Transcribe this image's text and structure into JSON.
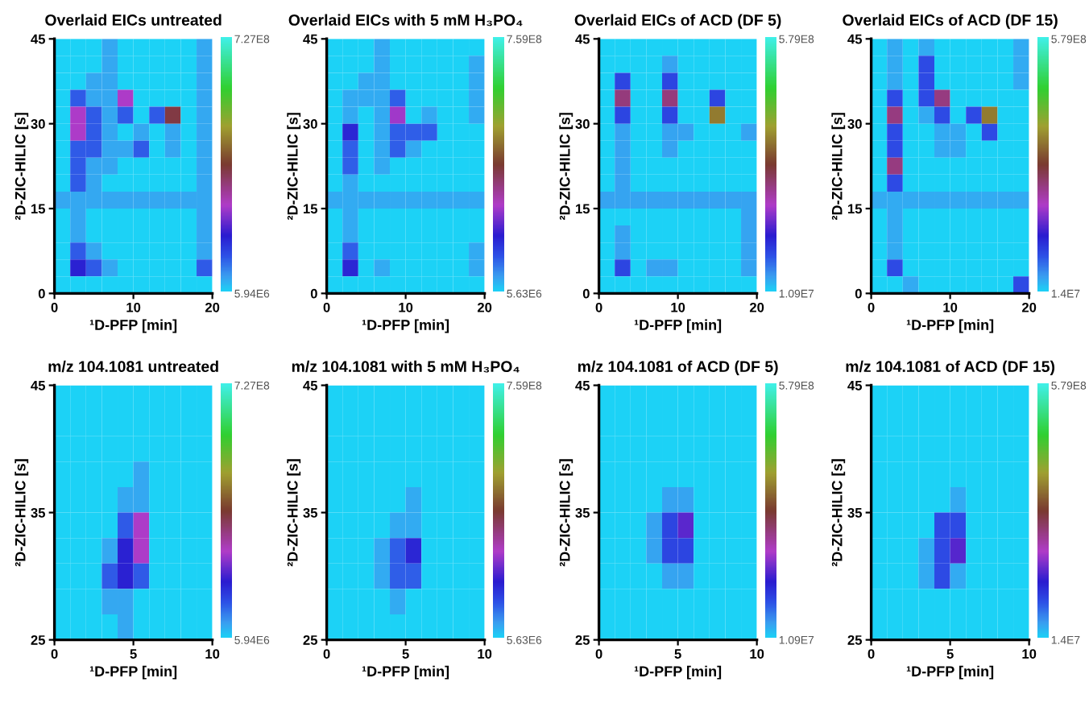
{
  "chart_data": [
    {
      "type": "heatmap",
      "title": "Overlaid EICs untreated",
      "xlabel": "¹D-PFP [min]",
      "ylabel": "²D-ZIC-HILIC [s]",
      "xlim": [
        0,
        20
      ],
      "xticks": [
        0,
        10,
        20
      ],
      "ylim": [
        0,
        45
      ],
      "yticks": [
        0,
        15,
        30,
        45
      ],
      "clim": [
        5940000.0,
        727000000.0
      ],
      "cticks": [
        {
          "value": 5940000.0,
          "label": "5.94E6"
        },
        {
          "value": 727000000.0,
          "label": "7.27E8"
        }
      ],
      "cells": [
        [
          6000000.0,
          6000000.0,
          6000000.0,
          40000000.0,
          6000000.0,
          6000000.0,
          6000000.0,
          6000000.0,
          6000000.0,
          40000000.0
        ],
        [
          6000000.0,
          6000000.0,
          6000000.0,
          40000000.0,
          6000000.0,
          6000000.0,
          6000000.0,
          6000000.0,
          6000000.0,
          40000000.0
        ],
        [
          6000000.0,
          6000000.0,
          40000000.0,
          40000000.0,
          6000000.0,
          6000000.0,
          6000000.0,
          6000000.0,
          6000000.0,
          40000000.0
        ],
        [
          6000000.0,
          100000000.0,
          40000000.0,
          40000000.0,
          250000000.0,
          6000000.0,
          6000000.0,
          6000000.0,
          6000000.0,
          40000000.0
        ],
        [
          6000000.0,
          250000000.0,
          100000000.0,
          40000000.0,
          100000000.0,
          6000000.0,
          100000000.0,
          350000000.0,
          6000000.0,
          40000000.0
        ],
        [
          6000000.0,
          250000000.0,
          100000000.0,
          40000000.0,
          6000000.0,
          40000000.0,
          6000000.0,
          40000000.0,
          6000000.0,
          40000000.0
        ],
        [
          6000000.0,
          100000000.0,
          100000000.0,
          40000000.0,
          40000000.0,
          100000000.0,
          6000000.0,
          40000000.0,
          6000000.0,
          40000000.0
        ],
        [
          6000000.0,
          100000000.0,
          40000000.0,
          40000000.0,
          6000000.0,
          6000000.0,
          6000000.0,
          6000000.0,
          6000000.0,
          40000000.0
        ],
        [
          6000000.0,
          100000000.0,
          40000000.0,
          6000000.0,
          6000000.0,
          6000000.0,
          6000000.0,
          6000000.0,
          6000000.0,
          40000000.0
        ],
        [
          40000000.0,
          40000000.0,
          40000000.0,
          40000000.0,
          40000000.0,
          40000000.0,
          40000000.0,
          40000000.0,
          40000000.0,
          40000000.0
        ],
        [
          6000000.0,
          40000000.0,
          6000000.0,
          6000000.0,
          6000000.0,
          6000000.0,
          6000000.0,
          6000000.0,
          6000000.0,
          40000000.0
        ],
        [
          6000000.0,
          40000000.0,
          6000000.0,
          6000000.0,
          6000000.0,
          6000000.0,
          6000000.0,
          6000000.0,
          6000000.0,
          40000000.0
        ],
        [
          6000000.0,
          100000000.0,
          40000000.0,
          6000000.0,
          6000000.0,
          6000000.0,
          6000000.0,
          6000000.0,
          6000000.0,
          40000000.0
        ],
        [
          6000000.0,
          160000000.0,
          100000000.0,
          40000000.0,
          6000000.0,
          6000000.0,
          6000000.0,
          6000000.0,
          6000000.0,
          100000000.0
        ],
        [
          6000000.0,
          6000000.0,
          6000000.0,
          6000000.0,
          6000000.0,
          6000000.0,
          6000000.0,
          6000000.0,
          6000000.0,
          6000000.0
        ]
      ]
    },
    {
      "type": "heatmap",
      "title": "Overlaid EICs with 5 mM H₃PO₄",
      "xlabel": "¹D-PFP [min]",
      "ylabel": "²D-ZIC-HILIC [s]",
      "xlim": [
        0,
        20
      ],
      "xticks": [
        0,
        10,
        20
      ],
      "ylim": [
        0,
        45
      ],
      "yticks": [
        0,
        15,
        30,
        45
      ],
      "clim": [
        5630000.0,
        759000000.0
      ],
      "cticks": [
        {
          "value": 5630000.0,
          "label": "5.63E6"
        },
        {
          "value": 759000000.0,
          "label": "7.59E8"
        }
      ],
      "cells": [
        [
          6000000.0,
          6000000.0,
          6000000.0,
          40000000.0,
          6000000.0,
          6000000.0,
          6000000.0,
          6000000.0,
          6000000.0,
          6000000.0
        ],
        [
          6000000.0,
          6000000.0,
          6000000.0,
          40000000.0,
          6000000.0,
          6000000.0,
          6000000.0,
          6000000.0,
          6000000.0,
          40000000.0
        ],
        [
          6000000.0,
          6000000.0,
          40000000.0,
          40000000.0,
          6000000.0,
          6000000.0,
          6000000.0,
          6000000.0,
          6000000.0,
          40000000.0
        ],
        [
          6000000.0,
          40000000.0,
          40000000.0,
          40000000.0,
          100000000.0,
          6000000.0,
          6000000.0,
          6000000.0,
          6000000.0,
          40000000.0
        ],
        [
          6000000.0,
          40000000.0,
          6000000.0,
          40000000.0,
          250000000.0,
          6000000.0,
          40000000.0,
          6000000.0,
          6000000.0,
          40000000.0
        ],
        [
          6000000.0,
          160000000.0,
          6000000.0,
          40000000.0,
          100000000.0,
          100000000.0,
          100000000.0,
          6000000.0,
          6000000.0,
          6000000.0
        ],
        [
          6000000.0,
          100000000.0,
          6000000.0,
          40000000.0,
          100000000.0,
          40000000.0,
          6000000.0,
          6000000.0,
          6000000.0,
          6000000.0
        ],
        [
          6000000.0,
          100000000.0,
          6000000.0,
          40000000.0,
          6000000.0,
          6000000.0,
          6000000.0,
          6000000.0,
          6000000.0,
          6000000.0
        ],
        [
          6000000.0,
          40000000.0,
          6000000.0,
          6000000.0,
          6000000.0,
          6000000.0,
          6000000.0,
          6000000.0,
          6000000.0,
          6000000.0
        ],
        [
          40000000.0,
          40000000.0,
          40000000.0,
          40000000.0,
          40000000.0,
          40000000.0,
          40000000.0,
          40000000.0,
          40000000.0,
          40000000.0
        ],
        [
          6000000.0,
          40000000.0,
          6000000.0,
          6000000.0,
          6000000.0,
          6000000.0,
          6000000.0,
          6000000.0,
          6000000.0,
          6000000.0
        ],
        [
          6000000.0,
          40000000.0,
          6000000.0,
          6000000.0,
          6000000.0,
          6000000.0,
          6000000.0,
          6000000.0,
          6000000.0,
          6000000.0
        ],
        [
          6000000.0,
          100000000.0,
          6000000.0,
          6000000.0,
          6000000.0,
          6000000.0,
          6000000.0,
          6000000.0,
          6000000.0,
          40000000.0
        ],
        [
          6000000.0,
          160000000.0,
          6000000.0,
          40000000.0,
          6000000.0,
          6000000.0,
          6000000.0,
          6000000.0,
          6000000.0,
          40000000.0
        ],
        [
          6000000.0,
          6000000.0,
          6000000.0,
          6000000.0,
          6000000.0,
          6000000.0,
          6000000.0,
          6000000.0,
          6000000.0,
          6000000.0
        ]
      ]
    },
    {
      "type": "heatmap",
      "title": "Overlaid EICs of ACD (DF 5)",
      "xlabel": "¹D-PFP [min]",
      "ylabel": "²D-ZIC-HILIC [s]",
      "xlim": [
        0,
        20
      ],
      "xticks": [
        0,
        10,
        20
      ],
      "ylim": [
        0,
        45
      ],
      "yticks": [
        0,
        15,
        30,
        45
      ],
      "clim": [
        10900000.0,
        579000000.0
      ],
      "cticks": [
        {
          "value": 10900000.0,
          "label": "1.09E7"
        },
        {
          "value": 579000000.0,
          "label": "5.79E8"
        }
      ],
      "cells": [
        [
          11000000.0,
          11000000.0,
          11000000.0,
          11000000.0,
          11000000.0,
          11000000.0,
          11000000.0,
          11000000.0,
          11000000.0,
          11000000.0
        ],
        [
          11000000.0,
          11000000.0,
          11000000.0,
          11000000.0,
          40000000.0,
          11000000.0,
          11000000.0,
          11000000.0,
          11000000.0,
          11000000.0
        ],
        [
          11000000.0,
          100000000.0,
          11000000.0,
          11000000.0,
          100000000.0,
          11000000.0,
          11000000.0,
          11000000.0,
          11000000.0,
          11000000.0
        ],
        [
          11000000.0,
          250000000.0,
          11000000.0,
          11000000.0,
          250000000.0,
          11000000.0,
          11000000.0,
          100000000.0,
          11000000.0,
          11000000.0
        ],
        [
          11000000.0,
          100000000.0,
          11000000.0,
          11000000.0,
          100000000.0,
          11000000.0,
          11000000.0,
          350000000.0,
          11000000.0,
          11000000.0
        ],
        [
          11000000.0,
          40000000.0,
          11000000.0,
          11000000.0,
          40000000.0,
          40000000.0,
          11000000.0,
          11000000.0,
          11000000.0,
          40000000.0
        ],
        [
          11000000.0,
          40000000.0,
          11000000.0,
          11000000.0,
          40000000.0,
          11000000.0,
          11000000.0,
          11000000.0,
          11000000.0,
          11000000.0
        ],
        [
          11000000.0,
          40000000.0,
          11000000.0,
          11000000.0,
          11000000.0,
          11000000.0,
          11000000.0,
          11000000.0,
          11000000.0,
          11000000.0
        ],
        [
          11000000.0,
          40000000.0,
          11000000.0,
          11000000.0,
          11000000.0,
          11000000.0,
          11000000.0,
          11000000.0,
          11000000.0,
          11000000.0
        ],
        [
          40000000.0,
          40000000.0,
          40000000.0,
          40000000.0,
          40000000.0,
          40000000.0,
          40000000.0,
          40000000.0,
          40000000.0,
          40000000.0
        ],
        [
          11000000.0,
          11000000.0,
          11000000.0,
          11000000.0,
          11000000.0,
          11000000.0,
          11000000.0,
          11000000.0,
          11000000.0,
          40000000.0
        ],
        [
          11000000.0,
          40000000.0,
          11000000.0,
          11000000.0,
          11000000.0,
          11000000.0,
          11000000.0,
          11000000.0,
          11000000.0,
          40000000.0
        ],
        [
          11000000.0,
          40000000.0,
          11000000.0,
          11000000.0,
          11000000.0,
          11000000.0,
          11000000.0,
          11000000.0,
          11000000.0,
          40000000.0
        ],
        [
          11000000.0,
          100000000.0,
          11000000.0,
          40000000.0,
          40000000.0,
          11000000.0,
          11000000.0,
          11000000.0,
          11000000.0,
          40000000.0
        ],
        [
          11000000.0,
          11000000.0,
          11000000.0,
          11000000.0,
          11000000.0,
          11000000.0,
          11000000.0,
          11000000.0,
          11000000.0,
          11000000.0
        ]
      ]
    },
    {
      "type": "heatmap",
      "title": "Overlaid EICs of ACD (DF 15)",
      "xlabel": "¹D-PFP [min]",
      "ylabel": "²D-ZIC-HILIC [s]",
      "xlim": [
        0,
        20
      ],
      "xticks": [
        0,
        10,
        20
      ],
      "ylim": [
        0,
        45
      ],
      "yticks": [
        0,
        15,
        30,
        45
      ],
      "clim": [
        14000000.0,
        579000000.0
      ],
      "cticks": [
        {
          "value": 14000000.0,
          "label": "1.4E7"
        },
        {
          "value": 579000000.0,
          "label": "5.79E8"
        }
      ],
      "cells": [
        [
          14000000.0,
          40000000.0,
          14000000.0,
          40000000.0,
          14000000.0,
          14000000.0,
          14000000.0,
          14000000.0,
          14000000.0,
          40000000.0
        ],
        [
          14000000.0,
          40000000.0,
          14000000.0,
          100000000.0,
          14000000.0,
          14000000.0,
          14000000.0,
          14000000.0,
          14000000.0,
          40000000.0
        ],
        [
          14000000.0,
          40000000.0,
          14000000.0,
          100000000.0,
          14000000.0,
          14000000.0,
          14000000.0,
          14000000.0,
          14000000.0,
          40000000.0
        ],
        [
          14000000.0,
          100000000.0,
          14000000.0,
          100000000.0,
          250000000.0,
          14000000.0,
          14000000.0,
          14000000.0,
          14000000.0,
          14000000.0
        ],
        [
          14000000.0,
          250000000.0,
          14000000.0,
          40000000.0,
          100000000.0,
          14000000.0,
          100000000.0,
          350000000.0,
          14000000.0,
          14000000.0
        ],
        [
          14000000.0,
          100000000.0,
          14000000.0,
          14000000.0,
          40000000.0,
          40000000.0,
          14000000.0,
          100000000.0,
          14000000.0,
          14000000.0
        ],
        [
          14000000.0,
          100000000.0,
          14000000.0,
          14000000.0,
          40000000.0,
          40000000.0,
          14000000.0,
          14000000.0,
          14000000.0,
          14000000.0
        ],
        [
          14000000.0,
          250000000.0,
          14000000.0,
          14000000.0,
          14000000.0,
          14000000.0,
          14000000.0,
          14000000.0,
          14000000.0,
          14000000.0
        ],
        [
          14000000.0,
          100000000.0,
          14000000.0,
          14000000.0,
          14000000.0,
          14000000.0,
          14000000.0,
          14000000.0,
          14000000.0,
          14000000.0
        ],
        [
          40000000.0,
          40000000.0,
          40000000.0,
          40000000.0,
          40000000.0,
          40000000.0,
          40000000.0,
          40000000.0,
          40000000.0,
          40000000.0
        ],
        [
          14000000.0,
          40000000.0,
          14000000.0,
          14000000.0,
          14000000.0,
          14000000.0,
          14000000.0,
          14000000.0,
          14000000.0,
          14000000.0
        ],
        [
          14000000.0,
          40000000.0,
          14000000.0,
          14000000.0,
          14000000.0,
          14000000.0,
          14000000.0,
          14000000.0,
          14000000.0,
          14000000.0
        ],
        [
          14000000.0,
          40000000.0,
          14000000.0,
          14000000.0,
          14000000.0,
          14000000.0,
          14000000.0,
          14000000.0,
          14000000.0,
          14000000.0
        ],
        [
          14000000.0,
          100000000.0,
          14000000.0,
          14000000.0,
          14000000.0,
          14000000.0,
          14000000.0,
          14000000.0,
          14000000.0,
          14000000.0
        ],
        [
          14000000.0,
          14000000.0,
          40000000.0,
          14000000.0,
          14000000.0,
          14000000.0,
          14000000.0,
          14000000.0,
          14000000.0,
          100000000.0
        ]
      ]
    },
    {
      "type": "heatmap",
      "title": "m/z 104.1081 untreated",
      "xlabel": "¹D-PFP [min]",
      "ylabel": "²D-ZIC-HILIC [s]",
      "xlim": [
        0,
        10
      ],
      "xticks": [
        0,
        5,
        10
      ],
      "ylim": [
        25,
        45
      ],
      "yticks": [
        25,
        35,
        45
      ],
      "clim": [
        5940000.0,
        727000000.0
      ],
      "cticks": [
        {
          "value": 5940000.0,
          "label": "5.94E6"
        },
        {
          "value": 727000000.0,
          "label": "7.27E8"
        }
      ],
      "cells": [
        [
          6000000.0,
          6000000.0,
          6000000.0,
          6000000.0,
          6000000.0,
          6000000.0,
          6000000.0,
          6000000.0,
          6000000.0,
          6000000.0
        ],
        [
          6000000.0,
          6000000.0,
          6000000.0,
          6000000.0,
          6000000.0,
          6000000.0,
          6000000.0,
          6000000.0,
          6000000.0,
          6000000.0
        ],
        [
          6000000.0,
          6000000.0,
          6000000.0,
          6000000.0,
          6000000.0,
          6000000.0,
          6000000.0,
          6000000.0,
          6000000.0,
          6000000.0
        ],
        [
          6000000.0,
          6000000.0,
          6000000.0,
          6000000.0,
          6000000.0,
          40000000.0,
          6000000.0,
          6000000.0,
          6000000.0,
          6000000.0
        ],
        [
          6000000.0,
          6000000.0,
          6000000.0,
          6000000.0,
          40000000.0,
          40000000.0,
          6000000.0,
          6000000.0,
          6000000.0,
          6000000.0
        ],
        [
          6000000.0,
          6000000.0,
          6000000.0,
          6000000.0,
          100000000.0,
          250000000.0,
          6000000.0,
          6000000.0,
          6000000.0,
          6000000.0
        ],
        [
          6000000.0,
          6000000.0,
          6000000.0,
          40000000.0,
          160000000.0,
          250000000.0,
          6000000.0,
          6000000.0,
          6000000.0,
          6000000.0
        ],
        [
          6000000.0,
          6000000.0,
          6000000.0,
          100000000.0,
          160000000.0,
          100000000.0,
          6000000.0,
          6000000.0,
          6000000.0,
          6000000.0
        ],
        [
          6000000.0,
          6000000.0,
          6000000.0,
          40000000.0,
          40000000.0,
          6000000.0,
          6000000.0,
          6000000.0,
          6000000.0,
          6000000.0
        ],
        [
          6000000.0,
          6000000.0,
          6000000.0,
          6000000.0,
          40000000.0,
          6000000.0,
          6000000.0,
          6000000.0,
          6000000.0,
          6000000.0
        ]
      ]
    },
    {
      "type": "heatmap",
      "title": "m/z 104.1081 with 5 mM H₃PO₄",
      "xlabel": "¹D-PFP [min]",
      "ylabel": "²D-ZIC-HILIC [s]",
      "xlim": [
        0,
        10
      ],
      "xticks": [
        0,
        5,
        10
      ],
      "ylim": [
        25,
        45
      ],
      "yticks": [
        25,
        35,
        45
      ],
      "clim": [
        5630000.0,
        759000000.0
      ],
      "cticks": [
        {
          "value": 5630000.0,
          "label": "5.63E6"
        },
        {
          "value": 759000000.0,
          "label": "7.59E8"
        }
      ],
      "cells": [
        [
          6000000.0,
          6000000.0,
          6000000.0,
          6000000.0,
          6000000.0,
          6000000.0,
          6000000.0,
          6000000.0,
          6000000.0,
          6000000.0
        ],
        [
          6000000.0,
          6000000.0,
          6000000.0,
          6000000.0,
          6000000.0,
          6000000.0,
          6000000.0,
          6000000.0,
          6000000.0,
          6000000.0
        ],
        [
          6000000.0,
          6000000.0,
          6000000.0,
          6000000.0,
          6000000.0,
          6000000.0,
          6000000.0,
          6000000.0,
          6000000.0,
          6000000.0
        ],
        [
          6000000.0,
          6000000.0,
          6000000.0,
          6000000.0,
          6000000.0,
          6000000.0,
          6000000.0,
          6000000.0,
          6000000.0,
          6000000.0
        ],
        [
          6000000.0,
          6000000.0,
          6000000.0,
          6000000.0,
          6000000.0,
          40000000.0,
          6000000.0,
          6000000.0,
          6000000.0,
          6000000.0
        ],
        [
          6000000.0,
          6000000.0,
          6000000.0,
          6000000.0,
          40000000.0,
          40000000.0,
          6000000.0,
          6000000.0,
          6000000.0,
          6000000.0
        ],
        [
          6000000.0,
          6000000.0,
          6000000.0,
          40000000.0,
          100000000.0,
          160000000.0,
          6000000.0,
          6000000.0,
          6000000.0,
          6000000.0
        ],
        [
          6000000.0,
          6000000.0,
          6000000.0,
          40000000.0,
          100000000.0,
          100000000.0,
          6000000.0,
          6000000.0,
          6000000.0,
          6000000.0
        ],
        [
          6000000.0,
          6000000.0,
          6000000.0,
          6000000.0,
          40000000.0,
          6000000.0,
          6000000.0,
          6000000.0,
          6000000.0,
          6000000.0
        ],
        [
          6000000.0,
          6000000.0,
          6000000.0,
          6000000.0,
          6000000.0,
          6000000.0,
          6000000.0,
          6000000.0,
          6000000.0,
          6000000.0
        ]
      ]
    },
    {
      "type": "heatmap",
      "title": "m/z 104.1081 of ACD (DF 5)",
      "xlabel": "¹D-PFP [min]",
      "ylabel": "²D-ZIC-HILIC [s]",
      "xlim": [
        0,
        10
      ],
      "xticks": [
        0,
        5,
        10
      ],
      "ylim": [
        25,
        45
      ],
      "yticks": [
        25,
        35,
        45
      ],
      "clim": [
        10900000.0,
        579000000.0
      ],
      "cticks": [
        {
          "value": 10900000.0,
          "label": "1.09E7"
        },
        {
          "value": 579000000.0,
          "label": "5.79E8"
        }
      ],
      "cells": [
        [
          11000000.0,
          11000000.0,
          11000000.0,
          11000000.0,
          11000000.0,
          11000000.0,
          11000000.0,
          11000000.0,
          11000000.0,
          11000000.0
        ],
        [
          11000000.0,
          11000000.0,
          11000000.0,
          11000000.0,
          11000000.0,
          11000000.0,
          11000000.0,
          11000000.0,
          11000000.0,
          11000000.0
        ],
        [
          11000000.0,
          11000000.0,
          11000000.0,
          11000000.0,
          11000000.0,
          11000000.0,
          11000000.0,
          11000000.0,
          11000000.0,
          11000000.0
        ],
        [
          11000000.0,
          11000000.0,
          11000000.0,
          11000000.0,
          11000000.0,
          11000000.0,
          11000000.0,
          11000000.0,
          11000000.0,
          11000000.0
        ],
        [
          11000000.0,
          11000000.0,
          11000000.0,
          11000000.0,
          40000000.0,
          40000000.0,
          11000000.0,
          11000000.0,
          11000000.0,
          11000000.0
        ],
        [
          11000000.0,
          11000000.0,
          11000000.0,
          40000000.0,
          100000000.0,
          160000000.0,
          11000000.0,
          11000000.0,
          11000000.0,
          11000000.0
        ],
        [
          11000000.0,
          11000000.0,
          11000000.0,
          40000000.0,
          100000000.0,
          100000000.0,
          11000000.0,
          11000000.0,
          11000000.0,
          11000000.0
        ],
        [
          11000000.0,
          11000000.0,
          11000000.0,
          11000000.0,
          40000000.0,
          40000000.0,
          11000000.0,
          11000000.0,
          11000000.0,
          11000000.0
        ],
        [
          11000000.0,
          11000000.0,
          11000000.0,
          11000000.0,
          11000000.0,
          11000000.0,
          11000000.0,
          11000000.0,
          11000000.0,
          11000000.0
        ],
        [
          11000000.0,
          11000000.0,
          11000000.0,
          11000000.0,
          11000000.0,
          11000000.0,
          11000000.0,
          11000000.0,
          11000000.0,
          11000000.0
        ]
      ]
    },
    {
      "type": "heatmap",
      "title": "m/z 104.1081 of ACD (DF 15)",
      "xlabel": "¹D-PFP [min]",
      "ylabel": "²D-ZIC-HILIC [s]",
      "xlim": [
        0,
        10
      ],
      "xticks": [
        0,
        5,
        10
      ],
      "ylim": [
        25,
        45
      ],
      "yticks": [
        25,
        35,
        45
      ],
      "clim": [
        14000000.0,
        579000000.0
      ],
      "cticks": [
        {
          "value": 14000000.0,
          "label": "1.4E7"
        },
        {
          "value": 579000000.0,
          "label": "5.79E8"
        }
      ],
      "cells": [
        [
          14000000.0,
          14000000.0,
          14000000.0,
          14000000.0,
          14000000.0,
          14000000.0,
          14000000.0,
          14000000.0,
          14000000.0,
          14000000.0
        ],
        [
          14000000.0,
          14000000.0,
          14000000.0,
          14000000.0,
          14000000.0,
          14000000.0,
          14000000.0,
          14000000.0,
          14000000.0,
          14000000.0
        ],
        [
          14000000.0,
          14000000.0,
          14000000.0,
          14000000.0,
          14000000.0,
          14000000.0,
          14000000.0,
          14000000.0,
          14000000.0,
          14000000.0
        ],
        [
          14000000.0,
          14000000.0,
          14000000.0,
          14000000.0,
          14000000.0,
          14000000.0,
          14000000.0,
          14000000.0,
          14000000.0,
          14000000.0
        ],
        [
          14000000.0,
          14000000.0,
          14000000.0,
          14000000.0,
          14000000.0,
          40000000.0,
          14000000.0,
          14000000.0,
          14000000.0,
          14000000.0
        ],
        [
          14000000.0,
          14000000.0,
          14000000.0,
          14000000.0,
          100000000.0,
          100000000.0,
          14000000.0,
          14000000.0,
          14000000.0,
          14000000.0
        ],
        [
          14000000.0,
          14000000.0,
          14000000.0,
          40000000.0,
          100000000.0,
          160000000.0,
          14000000.0,
          14000000.0,
          14000000.0,
          14000000.0
        ],
        [
          14000000.0,
          14000000.0,
          14000000.0,
          40000000.0,
          100000000.0,
          40000000.0,
          14000000.0,
          14000000.0,
          14000000.0,
          14000000.0
        ],
        [
          14000000.0,
          14000000.0,
          14000000.0,
          14000000.0,
          14000000.0,
          14000000.0,
          14000000.0,
          14000000.0,
          14000000.0,
          14000000.0
        ],
        [
          14000000.0,
          14000000.0,
          14000000.0,
          14000000.0,
          14000000.0,
          14000000.0,
          14000000.0,
          14000000.0,
          14000000.0,
          14000000.0
        ]
      ]
    }
  ]
}
